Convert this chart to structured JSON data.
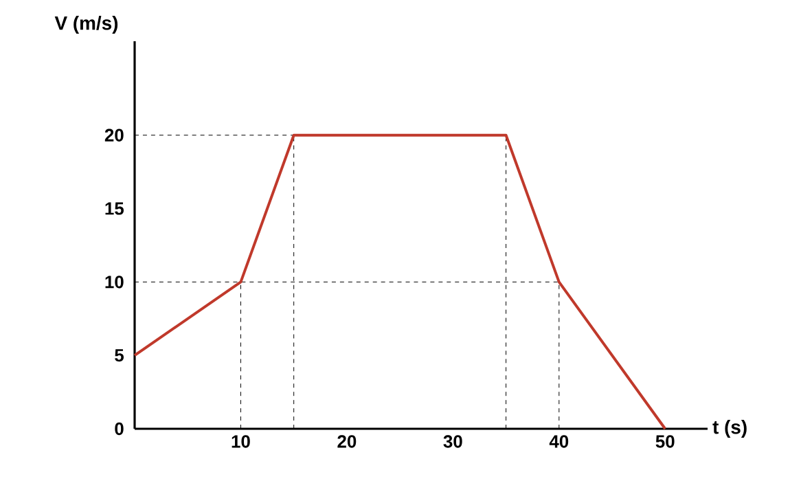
{
  "chart_data": {
    "type": "line",
    "xlabel": "t (s)",
    "ylabel": "V (m/s)",
    "x": [
      0,
      10,
      15,
      35,
      40,
      50
    ],
    "series": [
      {
        "color": "#c0392b",
        "values": [
          5,
          10,
          20,
          20,
          10,
          0
        ]
      }
    ],
    "xlim": [
      0,
      54
    ],
    "ylim": [
      0,
      26.4
    ],
    "xticks": [
      10,
      20,
      30,
      40,
      50
    ],
    "yticks": [
      0,
      5,
      10,
      15,
      20
    ],
    "grid": false,
    "marker": "none",
    "line_style": "solid",
    "ref_lines": [
      {
        "axis": "y",
        "value": 20,
        "line_style": "dashed"
      },
      {
        "axis": "y",
        "value": 10,
        "line_style": "dashed"
      },
      {
        "axis": "x",
        "value": 10,
        "line_style": "dashed"
      },
      {
        "axis": "x",
        "value": 15,
        "line_style": "dashed"
      },
      {
        "axis": "x",
        "value": 35,
        "line_style": "dashed"
      },
      {
        "axis": "x",
        "value": 40,
        "line_style": "dashed"
      }
    ]
  }
}
